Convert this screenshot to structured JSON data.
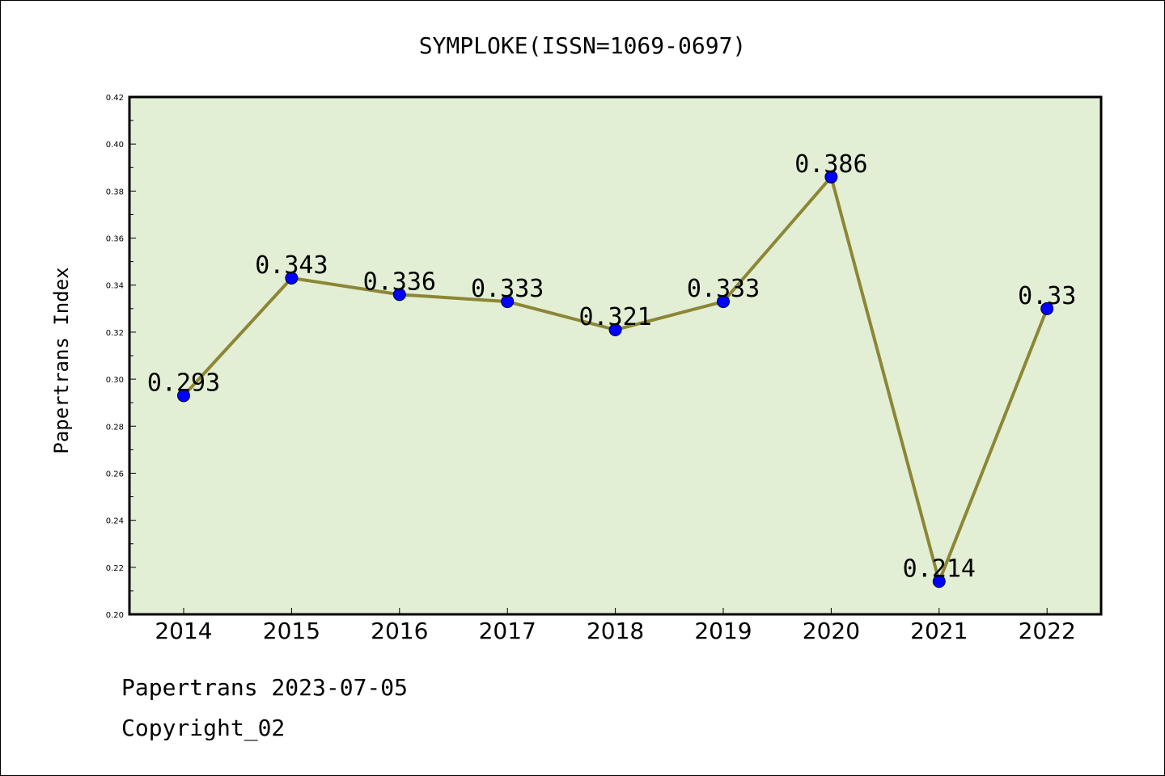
{
  "chart_data": {
    "type": "line",
    "title": "SYMPLOKE(ISSN=1069-0697)",
    "xlabel": "",
    "ylabel": "Papertrans Index",
    "categories": [
      "2014",
      "2015",
      "2016",
      "2017",
      "2018",
      "2019",
      "2020",
      "2021",
      "2022"
    ],
    "values": [
      0.293,
      0.343,
      0.336,
      0.333,
      0.321,
      0.333,
      0.386,
      0.214,
      0.33
    ],
    "data_labels": [
      "0.293",
      "0.343",
      "0.336",
      "0.333",
      "0.321",
      "0.333",
      "0.386",
      "0.214",
      "0.33"
    ],
    "ylim": [
      0.2,
      0.42
    ],
    "yticks": [
      "0.20",
      "0.22",
      "0.24",
      "0.26",
      "0.28",
      "0.30",
      "0.32",
      "0.34",
      "0.36",
      "0.38",
      "0.40",
      "0.42"
    ],
    "grid": false,
    "colors": {
      "plot_background": "#e2efd4",
      "line": "#8c8636",
      "marker": "#0000ff"
    }
  },
  "footer": {
    "line1": "Papertrans 2023-07-05",
    "line2": "Copyright_02"
  }
}
